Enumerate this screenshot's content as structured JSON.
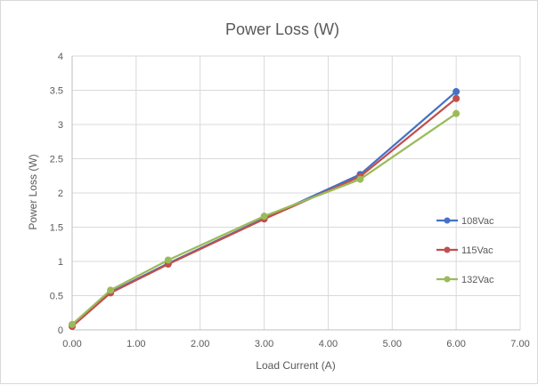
{
  "chart_data": {
    "type": "line",
    "title": "Power Loss (W)",
    "xlabel": "Load Current (A)",
    "ylabel": "Power Loss (W)",
    "xlim": [
      0,
      7
    ],
    "ylim": [
      0,
      4
    ],
    "xticks": [
      0,
      1,
      2,
      3,
      4,
      5,
      6,
      7
    ],
    "xtick_labels": [
      "0.00",
      "1.00",
      "2.00",
      "3.00",
      "4.00",
      "5.00",
      "6.00",
      "7.00"
    ],
    "yticks": [
      0,
      0.5,
      1,
      1.5,
      2,
      2.5,
      3,
      3.5,
      4
    ],
    "ytick_labels": [
      "0",
      "0.5",
      "1",
      "1.5",
      "2",
      "2.5",
      "3",
      "3.5",
      "4"
    ],
    "grid": true,
    "legend_position": "right",
    "x": [
      0,
      0.6,
      1.5,
      3,
      4.5,
      6
    ],
    "series": [
      {
        "name": "108Vac",
        "color": "#4472c4",
        "values": [
          0.06,
          0.55,
          0.97,
          1.63,
          2.27,
          3.48
        ]
      },
      {
        "name": "115Vac",
        "color": "#c0504d",
        "values": [
          0.05,
          0.54,
          0.96,
          1.62,
          2.24,
          3.38
        ]
      },
      {
        "name": "132Vac",
        "color": "#9bbb59",
        "values": [
          0.08,
          0.58,
          1.02,
          1.66,
          2.2,
          3.16
        ]
      }
    ]
  }
}
